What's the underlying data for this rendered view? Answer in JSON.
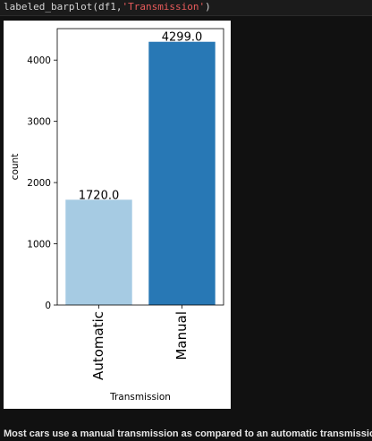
{
  "code": {
    "prefix": "labeled_barplot(df1,",
    "arg": "'Transmission'",
    "suffix": ")"
  },
  "caption": "Most cars use a manual transmission as compared to an automatic transmission",
  "chart_data": {
    "type": "bar",
    "categories": [
      "Automatic",
      "Manual"
    ],
    "values": [
      1720,
      4299
    ],
    "data_labels": [
      "1720.0",
      "4299.0"
    ],
    "colors": [
      "#a6cbe3",
      "#2878b5"
    ],
    "xlabel": "Transmission",
    "ylabel": "count",
    "yticks": [
      "0",
      "1000",
      "2000",
      "3000",
      "4000"
    ],
    "ylim": [
      0,
      4514
    ],
    "grid": false,
    "legend": "none"
  }
}
